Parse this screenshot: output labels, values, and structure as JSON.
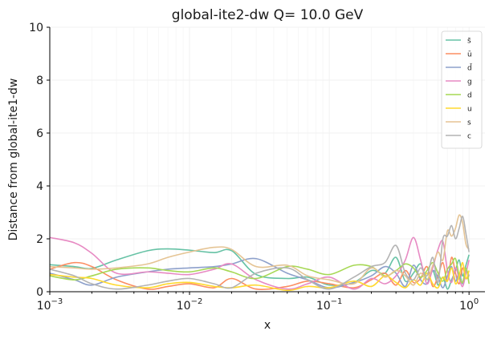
{
  "chart_data": {
    "type": "line",
    "title": "global-ite2-dw Q= 10.0 GeV",
    "xlabel": "x",
    "ylabel": "Distance from global-ite1-dw",
    "x_scale": "log",
    "xlim": [
      0.001,
      1.3
    ],
    "ylim": [
      0,
      10
    ],
    "x_ticks": [
      {
        "value": 0.001,
        "base": "10",
        "exp": "−3"
      },
      {
        "value": 0.01,
        "base": "10",
        "exp": "−2"
      },
      {
        "value": 0.1,
        "base": "10",
        "exp": "−1"
      },
      {
        "value": 1,
        "base": "10",
        "exp": "0"
      }
    ],
    "y_ticks": [
      "0",
      "2",
      "4",
      "6",
      "8",
      "10"
    ],
    "grid": true,
    "legend_position": "top-right",
    "x": [
      0.001,
      0.0015,
      0.002,
      0.003,
      0.005,
      0.007,
      0.01,
      0.015,
      0.02,
      0.03,
      0.05,
      0.07,
      0.1,
      0.15,
      0.2,
      0.25,
      0.3,
      0.35,
      0.4,
      0.45,
      0.5,
      0.55,
      0.6,
      0.65,
      0.7,
      0.75,
      0.8,
      0.85,
      0.9,
      0.95,
      1.0
    ],
    "series": [
      {
        "name": "s̄",
        "color": "#66c2a5",
        "values": [
          1.02,
          0.95,
          0.88,
          1.2,
          1.55,
          1.62,
          1.57,
          1.48,
          1.55,
          0.65,
          0.5,
          0.55,
          0.25,
          0.35,
          0.8,
          0.7,
          1.3,
          0.4,
          0.7,
          1.05,
          0.45,
          0.8,
          0.25,
          0.55,
          0.1,
          0.45,
          0.8,
          1.2,
          0.6,
          1.0,
          1.4
        ]
      },
      {
        "name": "ū",
        "color": "#fc8d62",
        "values": [
          0.85,
          1.1,
          0.95,
          0.45,
          0.1,
          0.2,
          0.3,
          0.15,
          0.5,
          0.1,
          0.2,
          0.4,
          0.3,
          0.15,
          0.45,
          0.7,
          0.25,
          0.8,
          0.35,
          0.5,
          0.95,
          0.2,
          0.6,
          1.1,
          0.4,
          1.3,
          0.7,
          0.3,
          0.9,
          0.5,
          0.6
        ]
      },
      {
        "name": "d̄",
        "color": "#8da0cb",
        "values": [
          0.7,
          0.45,
          0.25,
          0.55,
          0.75,
          0.85,
          0.9,
          0.95,
          1.05,
          1.25,
          0.7,
          0.45,
          0.15,
          0.35,
          0.6,
          0.95,
          0.7,
          0.2,
          1.0,
          0.45,
          0.3,
          0.8,
          0.55,
          0.15,
          0.6,
          0.95,
          0.4,
          0.7,
          0.3,
          0.8,
          0.6
        ]
      },
      {
        "name": "g",
        "color": "#e78ac3",
        "values": [
          2.05,
          1.85,
          1.45,
          0.7,
          0.75,
          0.7,
          0.65,
          0.85,
          1.05,
          0.45,
          0.1,
          0.3,
          0.55,
          0.1,
          0.5,
          0.3,
          0.6,
          1.2,
          2.05,
          1.2,
          0.3,
          0.9,
          1.6,
          1.9,
          0.8,
          0.35,
          0.9,
          0.5,
          0.2,
          0.7,
          1.2
        ]
      },
      {
        "name": "d",
        "color": "#a6d854",
        "values": [
          0.6,
          0.45,
          0.6,
          0.85,
          0.9,
          0.8,
          0.75,
          0.9,
          0.75,
          0.5,
          0.95,
          0.85,
          0.65,
          1.0,
          0.95,
          0.6,
          0.8,
          1.05,
          0.9,
          0.55,
          0.8,
          1.1,
          0.7,
          0.4,
          0.85,
          1.05,
          1.25,
          0.6,
          0.35,
          0.9,
          0.3
        ]
      },
      {
        "name": "u",
        "color": "#ffd92f",
        "values": [
          0.65,
          0.55,
          0.5,
          0.25,
          0.15,
          0.3,
          0.35,
          0.2,
          0.15,
          0.25,
          0.05,
          0.2,
          0.15,
          0.4,
          0.2,
          0.6,
          0.35,
          0.15,
          0.45,
          0.25,
          0.7,
          0.3,
          0.15,
          0.55,
          0.4,
          0.9,
          0.3,
          0.6,
          1.1,
          0.5,
          0.8
        ]
      },
      {
        "name": "s",
        "color": "#e5c494",
        "values": [
          0.95,
          0.9,
          0.85,
          0.9,
          1.05,
          1.3,
          1.5,
          1.68,
          1.6,
          0.95,
          1.0,
          0.6,
          0.45,
          0.3,
          0.9,
          0.55,
          0.8,
          0.6,
          0.25,
          0.7,
          0.45,
          1.0,
          1.5,
          1.2,
          2.3,
          2.1,
          2.4,
          2.9,
          2.6,
          1.8,
          1.6
        ]
      },
      {
        "name": "c",
        "color": "#b3b3b3",
        "values": [
          0.85,
          0.6,
          0.3,
          0.1,
          0.25,
          0.4,
          0.5,
          0.3,
          0.15,
          0.7,
          0.9,
          0.45,
          0.1,
          0.55,
          0.95,
          1.1,
          1.75,
          0.7,
          0.45,
          0.9,
          0.6,
          1.3,
          0.35,
          2.0,
          2.1,
          2.5,
          2.0,
          2.4,
          2.85,
          2.2,
          1.5
        ]
      }
    ]
  }
}
